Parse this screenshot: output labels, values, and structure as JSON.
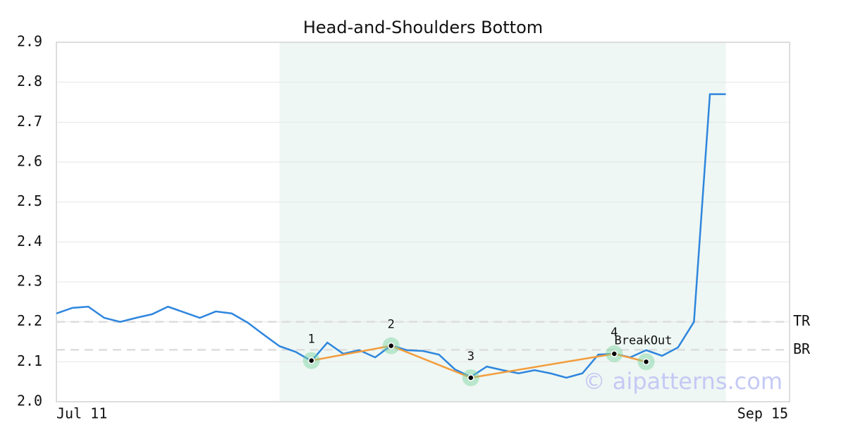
{
  "chart_data": {
    "type": "line",
    "title": "Head-and-Shoulders Bottom",
    "x": [
      0,
      1,
      2,
      3,
      4,
      5,
      6,
      7,
      8,
      9,
      10,
      11,
      12,
      13,
      14,
      15,
      16,
      17,
      18,
      19,
      20,
      21,
      22,
      23,
      24,
      25,
      26,
      27,
      28,
      29,
      30,
      31,
      32,
      33,
      34,
      35,
      36,
      37,
      38,
      39,
      40,
      41,
      42
    ],
    "series": [
      {
        "name": "Price",
        "color": "#2e86de",
        "values": [
          2.221,
          2.235,
          2.238,
          2.21,
          2.2,
          2.21,
          2.219,
          2.238,
          2.224,
          2.21,
          2.226,
          2.221,
          2.198,
          2.168,
          2.139,
          2.125,
          2.102,
          2.148,
          2.12,
          2.129,
          2.111,
          2.141,
          2.129,
          2.127,
          2.118,
          2.081,
          2.062,
          2.088,
          2.079,
          2.071,
          2.079,
          2.071,
          2.06,
          2.071,
          2.118,
          2.12,
          2.111,
          2.129,
          2.115,
          2.136,
          2.2,
          2.77,
          2.77
        ]
      }
    ],
    "pattern": {
      "color": "#f39c3d",
      "x": [
        16,
        21,
        26,
        35,
        37
      ],
      "values": [
        2.103,
        2.14,
        2.06,
        2.12,
        2.1
      ],
      "labels": [
        "1",
        "2",
        "3",
        "4",
        "BreakOut"
      ]
    },
    "highlight_range": [
      14,
      42
    ],
    "levels": [
      {
        "label": "TR",
        "value": 2.2
      },
      {
        "label": "BR",
        "value": 2.13
      }
    ],
    "xlim": [
      0,
      46
    ],
    "xticks": [
      {
        "value": 0,
        "label": "Jul 11"
      },
      {
        "value": 46,
        "label": "Sep 15"
      }
    ],
    "ylim": [
      2.0,
      2.9
    ],
    "yticks": [
      {
        "value": 2,
        "label": "2.0"
      },
      2.1,
      2.2,
      2.3,
      2.4,
      2.5,
      2.6,
      2.7,
      2.8,
      2.9
    ],
    "grid": true,
    "watermark": "© aipatterns.com"
  }
}
